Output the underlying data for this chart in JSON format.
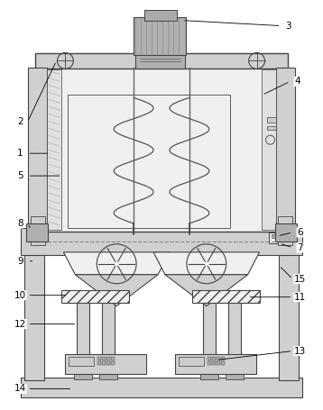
{
  "background_color": "#ffffff",
  "line_color": "#444444",
  "fig_width": 3.58,
  "fig_height": 4.55,
  "dpi": 100,
  "gray_light": "#e8e8e8",
  "gray_mid": "#d0d0d0",
  "gray_dark": "#b0b0b0",
  "gray_fill": "#f0f0f0",
  "label_font": 7.5
}
